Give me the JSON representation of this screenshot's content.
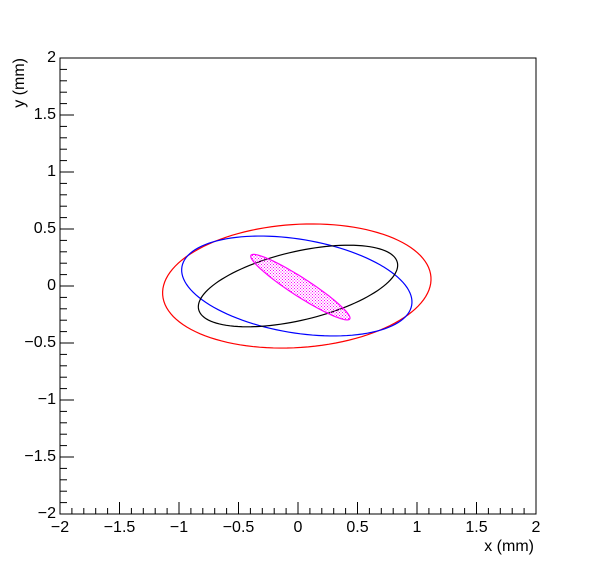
{
  "chart_data": {
    "type": "ellipse",
    "xlabel": "x (mm)",
    "ylabel": "y (mm)",
    "xlim": [
      -2,
      2
    ],
    "ylim": [
      -2,
      2
    ],
    "xticks": [
      {
        "value": -2,
        "label": "−2"
      },
      {
        "value": -1.5,
        "label": "−1.5"
      },
      {
        "value": -1,
        "label": "−1"
      },
      {
        "value": -0.5,
        "label": "−0.5"
      },
      0,
      0.5,
      1,
      1.5,
      2
    ],
    "yticks": [
      {
        "value": -2,
        "label": "−2"
      },
      {
        "value": -1.5,
        "label": "−1.5"
      },
      {
        "value": -1,
        "label": "−1"
      },
      {
        "value": -0.5,
        "label": "−0.5"
      },
      0,
      0.5,
      1,
      1.5,
      2
    ],
    "series": [
      {
        "color": "#ff0000",
        "cx": -0.01,
        "cy": 0.0,
        "rx": 1.13,
        "ry": 0.54,
        "angle": 4,
        "filled": false
      },
      {
        "color": "#0000ff",
        "cx": -0.01,
        "cy": 0.0,
        "rx": 0.98,
        "ry": 0.41,
        "angle": -10,
        "filled": false
      },
      {
        "color": "#000000",
        "cx": 0.0,
        "cy": 0.0,
        "rx": 0.86,
        "ry": 0.3,
        "angle": 14,
        "filled": false
      },
      {
        "color": "#ff00ff",
        "cx": 0.02,
        "cy": -0.01,
        "rx": 0.5,
        "ry": 0.08,
        "angle": -34,
        "filled": true
      }
    ]
  }
}
